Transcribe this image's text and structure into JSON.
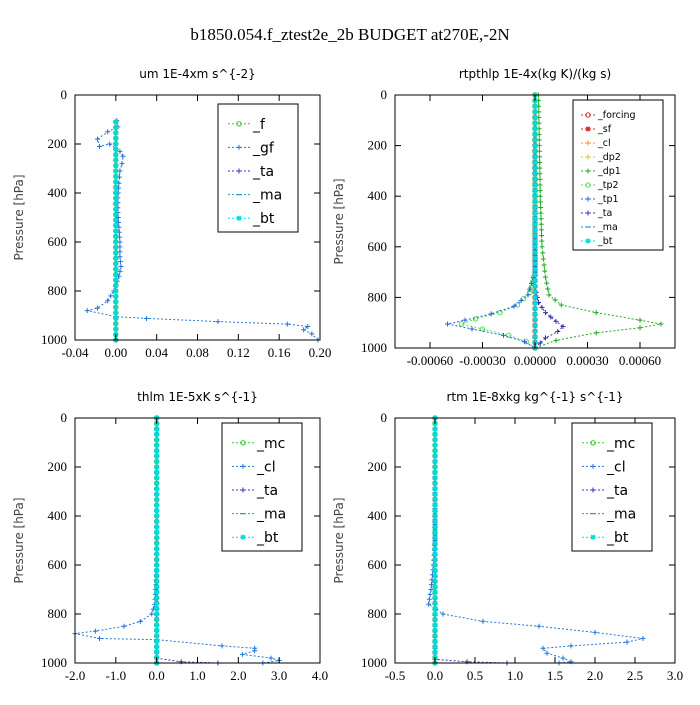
{
  "figure": {
    "title": "b1850.054.f_ztest2e_2b  BUDGET at270E,-2N",
    "ylabel": "Pressure [hPa]"
  },
  "chart_data": [
    {
      "id": "um",
      "type": "line",
      "title": "um   1E-4xm s^{-2}",
      "ylabel": "Pressure [hPa]",
      "xlim": [
        -0.04,
        0.2
      ],
      "ylim": [
        1000,
        0
      ],
      "xticks": [
        -0.04,
        0.0,
        0.04,
        0.08,
        0.12,
        0.16,
        0.2
      ],
      "xtick_labels": [
        "-0.04",
        "0.00",
        "0.04",
        "0.08",
        "0.12",
        "0.16",
        "0.20"
      ],
      "yticks": [
        0,
        200,
        400,
        600,
        800,
        1000
      ],
      "legend_position": "top-right",
      "series": [
        {
          "name": "_f",
          "color": "#33cc33",
          "marker": "circle",
          "points": [
            [
              0,
              110
            ],
            [
              0,
              1000
            ]
          ]
        },
        {
          "name": "_gf",
          "color": "#2277dd",
          "marker": "plus",
          "points": [
            [
              0.001,
              105
            ],
            [
              0.002,
              130
            ],
            [
              -0.008,
              150
            ],
            [
              -0.018,
              180
            ],
            [
              -0.016,
              210
            ],
            [
              -0.006,
              200
            ],
            [
              0.004,
              230
            ],
            [
              0.007,
              250
            ],
            [
              0.006,
              280
            ],
            [
              0.004,
              310
            ],
            [
              0.003,
              360
            ],
            [
              0.002,
              420
            ],
            [
              0.002,
              480
            ],
            [
              0.003,
              540
            ],
            [
              0.004,
              600
            ],
            [
              0.004,
              660
            ],
            [
              0.005,
              700
            ],
            [
              0.003,
              740
            ],
            [
              -0.002,
              800
            ],
            [
              -0.008,
              840
            ],
            [
              -0.018,
              870
            ],
            [
              -0.028,
              880
            ],
            [
              0.0,
              905
            ],
            [
              0.03,
              912
            ],
            [
              0.1,
              925
            ],
            [
              0.168,
              935
            ],
            [
              0.188,
              945
            ],
            [
              0.184,
              958
            ],
            [
              0.192,
              975
            ],
            [
              0.198,
              1000
            ]
          ]
        },
        {
          "name": "_ta",
          "color": "#3333bb",
          "marker": "plus",
          "points": [
            [
              0,
              110
            ],
            [
              0,
              1000
            ]
          ]
        },
        {
          "name": "_ma",
          "color": "#2299cc",
          "marker": "dash",
          "points": [
            [
              0,
              110
            ],
            [
              0,
              1000
            ]
          ]
        },
        {
          "name": "_bt",
          "color": "#00dddd",
          "marker": "star",
          "points": [
            [
              0,
              110
            ],
            [
              0,
              1000
            ]
          ]
        }
      ]
    },
    {
      "id": "rtpthlp",
      "type": "line",
      "title": "rtpthlp   1E-4x(kg K)/(kg s)",
      "ylabel": "Pressure [hPa]",
      "xlim": [
        -0.0008,
        0.0008
      ],
      "ylim": [
        1000,
        0
      ],
      "xticks": [
        -0.0006,
        -0.0003,
        0.0,
        0.0003,
        0.0006
      ],
      "xtick_labels": [
        "-0.00060",
        "-0.00030",
        "0.00000",
        "0.00030",
        "0.00060"
      ],
      "yticks": [
        0,
        200,
        400,
        600,
        800,
        1000
      ],
      "legend_position": "top-right",
      "series": [
        {
          "name": "_forcing",
          "color": "#cc3333",
          "marker": "circle",
          "points": [
            [
              0,
              0
            ],
            [
              0,
              1000
            ]
          ]
        },
        {
          "name": "_sf",
          "color": "#dd2222",
          "marker": "star",
          "points": [
            [
              0,
              0
            ],
            [
              0,
              1000
            ]
          ]
        },
        {
          "name": "_cl",
          "color": "#ee9922",
          "marker": "plus",
          "points": [
            [
              0,
              0
            ],
            [
              0,
              1000
            ]
          ]
        },
        {
          "name": "_dp2",
          "color": "#cccc22",
          "marker": "plus",
          "points": [
            [
              0,
              0
            ],
            [
              0,
              1000
            ]
          ]
        },
        {
          "name": "_dp1",
          "color": "#22aa22",
          "marker": "plus",
          "points": [
            [
              2e-05,
              0
            ],
            [
              3e-05,
              400
            ],
            [
              4e-05,
              600
            ],
            [
              6e-05,
              720
            ],
            [
              8e-05,
              790
            ],
            [
              0.00015,
              830
            ],
            [
              0.00035,
              860
            ],
            [
              0.0006,
              890
            ],
            [
              0.00072,
              905
            ],
            [
              0.0006,
              920
            ],
            [
              0.00035,
              940
            ],
            [
              0.00012,
              970
            ],
            [
              0.0,
              1000
            ]
          ]
        },
        {
          "name": "_tp2",
          "color": "#55dd55",
          "marker": "circle",
          "points": [
            [
              0,
              0
            ],
            [
              0,
              700
            ],
            [
              -3e-05,
              780
            ],
            [
              -0.0001,
              830
            ],
            [
              -0.0002,
              860
            ],
            [
              -0.00034,
              885
            ],
            [
              -0.00042,
              905
            ],
            [
              -0.0003,
              925
            ],
            [
              -0.00015,
              950
            ],
            [
              -5e-05,
              975
            ],
            [
              0,
              1000
            ]
          ]
        },
        {
          "name": "_tp1",
          "color": "#2266dd",
          "marker": "plus",
          "points": [
            [
              0,
              0
            ],
            [
              0,
              700
            ],
            [
              -4e-05,
              790
            ],
            [
              -0.00012,
              835
            ],
            [
              -0.00025,
              865
            ],
            [
              -0.0004,
              890
            ],
            [
              -0.0005,
              905
            ],
            [
              -0.00036,
              925
            ],
            [
              -0.00018,
              950
            ],
            [
              -6e-05,
              975
            ],
            [
              0,
              1000
            ]
          ]
        },
        {
          "name": "_ta",
          "color": "#3333bb",
          "marker": "plus",
          "points": [
            [
              0,
              0
            ],
            [
              0,
              760
            ],
            [
              2e-05,
              820
            ],
            [
              6e-05,
              860
            ],
            [
              0.00012,
              895
            ],
            [
              0.00016,
              915
            ],
            [
              0.00013,
              935
            ],
            [
              6e-05,
              960
            ],
            [
              0,
              1000
            ]
          ]
        },
        {
          "name": "_ma",
          "color": "#2299cc",
          "marker": "dash",
          "points": [
            [
              0,
              0
            ],
            [
              0,
              1000
            ]
          ]
        },
        {
          "name": "_bt",
          "color": "#00dddd",
          "marker": "star",
          "points": [
            [
              0,
              0
            ],
            [
              0,
              1000
            ]
          ]
        }
      ]
    },
    {
      "id": "thlm",
      "type": "line",
      "title": "thlm   1E-5xK s^{-1}",
      "ylabel": "Pressure [hPa]",
      "xlim": [
        -2.0,
        4.0
      ],
      "ylim": [
        1000,
        0
      ],
      "xticks": [
        -2.0,
        -1.0,
        0.0,
        1.0,
        2.0,
        3.0,
        4.0
      ],
      "xtick_labels": [
        "-2.0",
        "-1.0",
        "0.0",
        "1.0",
        "2.0",
        "3.0",
        "4.0"
      ],
      "yticks": [
        0,
        200,
        400,
        600,
        800,
        1000
      ],
      "legend_position": "top-right",
      "series": [
        {
          "name": "_mc",
          "color": "#33cc33",
          "marker": "circle",
          "points": [
            [
              0,
              0
            ],
            [
              0,
              1000
            ]
          ]
        },
        {
          "name": "_cl",
          "color": "#2277dd",
          "marker": "plus",
          "points": [
            [
              0,
              0
            ],
            [
              0,
              600
            ],
            [
              -0.02,
              700
            ],
            [
              -0.05,
              760
            ],
            [
              -0.12,
              800
            ],
            [
              -0.4,
              830
            ],
            [
              -0.8,
              850
            ],
            [
              -1.5,
              870
            ],
            [
              -2.0,
              880
            ],
            [
              -1.4,
              900
            ],
            [
              0.0,
              905
            ],
            [
              1.6,
              930
            ],
            [
              2.4,
              940
            ],
            [
              2.4,
              950
            ],
            [
              2.1,
              965
            ],
            [
              2.8,
              980
            ],
            [
              3.0,
              990
            ],
            [
              2.6,
              1000
            ]
          ]
        },
        {
          "name": "_ta",
          "color": "#3333bb",
          "marker": "plus",
          "points": [
            [
              0,
              0
            ],
            [
              0,
              980
            ],
            [
              0.6,
              995
            ],
            [
              1.5,
              1000
            ]
          ]
        },
        {
          "name": "_ma",
          "color": "#2299cc",
          "marker": "dash",
          "points": [
            [
              0,
              0
            ],
            [
              0,
              1000
            ]
          ]
        },
        {
          "name": "_bt",
          "color": "#00dddd",
          "marker": "star",
          "points": [
            [
              0,
              0
            ],
            [
              0,
              1000
            ]
          ]
        }
      ]
    },
    {
      "id": "rtm",
      "type": "line",
      "title": "rtm   1E-8xkg kg^{-1} s^{-1}",
      "ylabel": "Pressure [hPa]",
      "xlim": [
        -0.5,
        3.0
      ],
      "ylim": [
        1000,
        0
      ],
      "xticks": [
        -0.5,
        0.0,
        0.5,
        1.0,
        1.5,
        2.0,
        2.5,
        3.0
      ],
      "xtick_labels": [
        "-0.5",
        "0.0",
        "0.5",
        "1.0",
        "1.5",
        "2.0",
        "2.5",
        "3.0"
      ],
      "yticks": [
        0,
        200,
        400,
        600,
        800,
        1000
      ],
      "legend_position": "top-right",
      "series": [
        {
          "name": "_mc",
          "color": "#33cc33",
          "marker": "circle",
          "points": [
            [
              0,
              0
            ],
            [
              0,
              1000
            ]
          ]
        },
        {
          "name": "_cl",
          "color": "#2277dd",
          "marker": "plus",
          "points": [
            [
              0,
              0
            ],
            [
              0,
              500
            ],
            [
              -0.02,
              600
            ],
            [
              -0.05,
              700
            ],
            [
              -0.08,
              760
            ],
            [
              0.1,
              800
            ],
            [
              0.6,
              830
            ],
            [
              1.3,
              850
            ],
            [
              2.0,
              875
            ],
            [
              2.6,
              900
            ],
            [
              2.4,
              915
            ],
            [
              1.7,
              930
            ],
            [
              1.35,
              940
            ],
            [
              1.4,
              960
            ],
            [
              1.6,
              980
            ],
            [
              1.7,
              995
            ],
            [
              1.55,
              1000
            ]
          ]
        },
        {
          "name": "_ta",
          "color": "#3333bb",
          "marker": "plus",
          "points": [
            [
              0,
              0
            ],
            [
              0,
              985
            ],
            [
              0.4,
              995
            ],
            [
              0.9,
              1000
            ]
          ]
        },
        {
          "name": "_ma",
          "color": "#2299cc",
          "marker": "dash",
          "points": [
            [
              0,
              0
            ],
            [
              0,
              1000
            ]
          ]
        },
        {
          "name": "_bt",
          "color": "#00dddd",
          "marker": "star",
          "points": [
            [
              0,
              0
            ],
            [
              0,
              1000
            ]
          ]
        }
      ]
    }
  ]
}
